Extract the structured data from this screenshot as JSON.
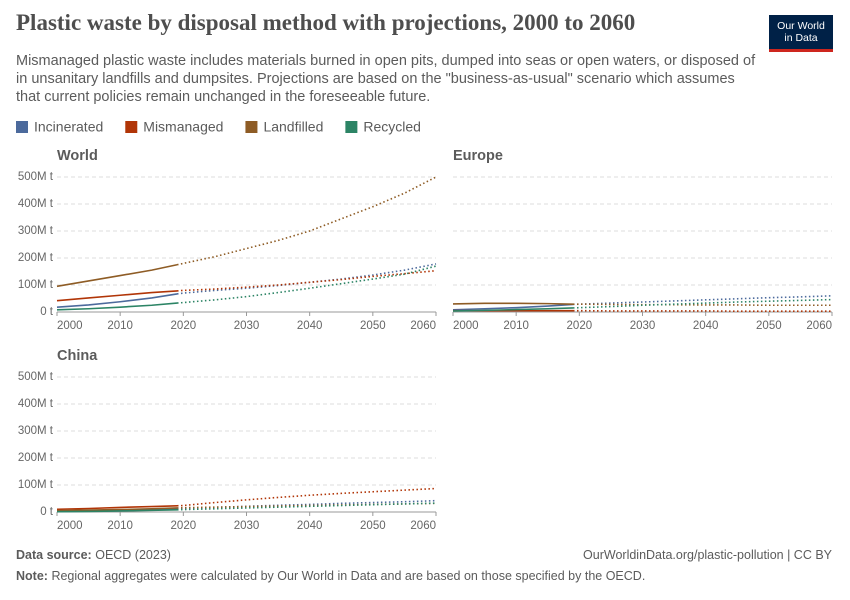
{
  "header": {
    "title": "Plastic waste by disposal method with projections, 2000 to 2060",
    "subtitle": "Mismanaged plastic waste includes materials burned in open pits, dumped into seas or open waters, or disposed of in unsanitary landfills and dumpsites. Projections are based on the \"business-as-usual\" scenario which assumes that current policies remain unchanged in the foreseeable future.",
    "logo": [
      "Our World",
      "in Data"
    ]
  },
  "footer": {
    "source_label": "Data source:",
    "source": "OECD (2023)",
    "url": "OurWorldinData.org/plastic-pollution | CC BY",
    "note_label": "Note:",
    "note": "Regional aggregates were calculated by Our World in Data and are based on those specified by the OECD."
  },
  "chart_data": [
    {
      "type": "line",
      "title": "World",
      "projection_from": 2019,
      "x": [
        2000,
        2005,
        2010,
        2015,
        2019,
        2020,
        2025,
        2030,
        2035,
        2040,
        2045,
        2050,
        2055,
        2060
      ],
      "series": [
        {
          "name": "Incinerated",
          "color": "#4c6a9c",
          "values": [
            18,
            26,
            38,
            52,
            67,
            70,
            80,
            88,
            98,
            110,
            122,
            137,
            155,
            178
          ]
        },
        {
          "name": "Mismanaged",
          "color": "#b13507",
          "values": [
            42,
            52,
            62,
            72,
            78,
            80,
            85,
            92,
            100,
            110,
            120,
            132,
            142,
            153
          ]
        },
        {
          "name": "Landfilled",
          "color": "#8e5c25",
          "values": [
            95,
            115,
            135,
            155,
            175,
            180,
            205,
            235,
            265,
            300,
            345,
            390,
            440,
            500
          ]
        },
        {
          "name": "Recycled",
          "color": "#2c8465",
          "values": [
            8,
            12,
            18,
            25,
            33,
            35,
            45,
            57,
            72,
            88,
            105,
            122,
            140,
            170
          ]
        }
      ],
      "xlim": [
        2000,
        2060
      ],
      "xticks": [
        2000,
        2010,
        2020,
        2030,
        2040,
        2050,
        2060
      ],
      "ylim": [
        0,
        500
      ],
      "yticks": [
        {
          "value": 0,
          "label": "0 t"
        },
        {
          "value": 100,
          "label": "100M t"
        },
        {
          "value": 200,
          "label": "200M t"
        },
        {
          "value": 300,
          "label": "300M t"
        },
        {
          "value": 400,
          "label": "400M t"
        },
        {
          "value": 500,
          "label": "500M t"
        }
      ],
      "grid": true
    },
    {
      "type": "line",
      "title": "Europe",
      "projection_from": 2019,
      "x": [
        2000,
        2005,
        2010,
        2015,
        2019,
        2020,
        2025,
        2030,
        2035,
        2040,
        2045,
        2050,
        2055,
        2060
      ],
      "series": [
        {
          "name": "Incinerated",
          "color": "#4c6a9c",
          "values": [
            8,
            12,
            16,
            22,
            28,
            29,
            33,
            37,
            41,
            45,
            49,
            53,
            56,
            60
          ]
        },
        {
          "name": "Mismanaged",
          "color": "#b13507",
          "values": [
            5,
            5,
            5,
            5,
            5,
            5,
            4,
            4,
            4,
            4,
            3,
            3,
            3,
            3
          ]
        },
        {
          "name": "Landfilled",
          "color": "#8e5c25",
          "values": [
            30,
            32,
            32,
            31,
            29,
            29,
            28,
            27,
            27,
            26,
            26,
            25,
            25,
            25
          ]
        },
        {
          "name": "Recycled",
          "color": "#2c8465",
          "values": [
            4,
            6,
            9,
            12,
            15,
            16,
            20,
            25,
            29,
            33,
            37,
            40,
            43,
            46
          ]
        }
      ],
      "xlim": [
        2000,
        2060
      ],
      "xticks": [
        2000,
        2010,
        2020,
        2030,
        2040,
        2050,
        2060
      ],
      "ylim": [
        0,
        500
      ],
      "yticks": [
        0,
        100,
        200,
        300,
        400,
        500
      ],
      "grid": true
    },
    {
      "type": "line",
      "title": "China",
      "projection_from": 2019,
      "x": [
        2000,
        2005,
        2010,
        2015,
        2019,
        2020,
        2025,
        2030,
        2035,
        2040,
        2045,
        2050,
        2055,
        2060
      ],
      "series": [
        {
          "name": "Incinerated",
          "color": "#4c6a9c",
          "values": [
            2,
            3,
            5,
            8,
            12,
            13,
            17,
            21,
            25,
            28,
            32,
            35,
            38,
            42
          ]
        },
        {
          "name": "Mismanaged",
          "color": "#b13507",
          "values": [
            10,
            13,
            17,
            20,
            23,
            24,
            35,
            45,
            54,
            62,
            69,
            75,
            81,
            87
          ]
        },
        {
          "name": "Landfilled",
          "color": "#8e5c25",
          "values": [
            5,
            7,
            9,
            12,
            15,
            16,
            18,
            20,
            22,
            24,
            26,
            28,
            30,
            32
          ]
        },
        {
          "name": "Recycled",
          "color": "#2c8465",
          "values": [
            1,
            2,
            4,
            6,
            8,
            9,
            12,
            15,
            18,
            21,
            24,
            27,
            30,
            33
          ]
        }
      ],
      "xlim": [
        2000,
        2060
      ],
      "xticks": [
        2000,
        2010,
        2020,
        2030,
        2040,
        2050,
        2060
      ],
      "ylim": [
        0,
        500
      ],
      "yticks": [
        {
          "value": 0,
          "label": "0 t"
        },
        {
          "value": 100,
          "label": "100M t"
        },
        {
          "value": 200,
          "label": "200M t"
        },
        {
          "value": 300,
          "label": "300M t"
        },
        {
          "value": 400,
          "label": "400M t"
        },
        {
          "value": 500,
          "label": "500M t"
        }
      ],
      "grid": true
    }
  ]
}
